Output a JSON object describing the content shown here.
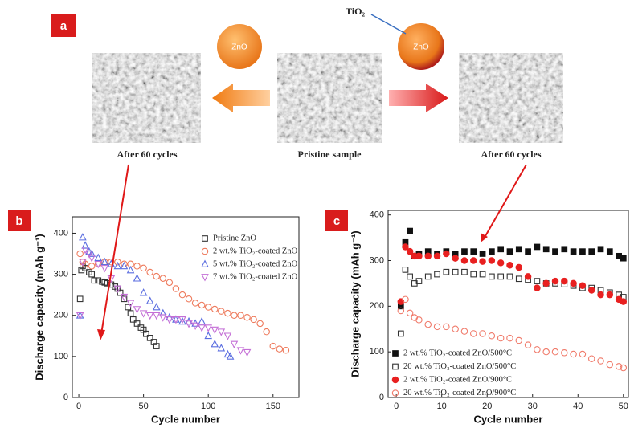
{
  "panel_a": {
    "label": "a",
    "coating_label": "TiO₂",
    "particle_labels": [
      "ZnO",
      "ZnO"
    ],
    "captions": [
      "After 60 cycles",
      "Pristine sample",
      "After 60 cycles"
    ]
  },
  "chart_data": [
    {
      "type": "scatter",
      "label": "b",
      "xlabel": "Cycle number",
      "ylabel": "Discharge capacity (mAh g⁻¹)",
      "xlim": [
        -5,
        170
      ],
      "xticks": [
        0,
        50,
        100,
        150
      ],
      "ylim": [
        0,
        440
      ],
      "yticks": [
        0,
        100,
        200,
        300,
        400
      ],
      "grid": false,
      "series": [
        {
          "name": "Pristine ZnO",
          "color": "#333333",
          "marker": "square",
          "filled": false,
          "x": [
            1,
            2,
            3,
            5,
            8,
            10,
            12,
            15,
            18,
            20,
            22,
            25,
            28,
            30,
            32,
            35,
            38,
            40,
            42,
            45,
            48,
            50,
            52,
            55,
            58,
            60
          ],
          "values": [
            240,
            310,
            320,
            315,
            305,
            300,
            285,
            285,
            282,
            280,
            278,
            275,
            270,
            265,
            255,
            240,
            220,
            205,
            190,
            180,
            170,
            165,
            155,
            145,
            135,
            125
          ]
        },
        {
          "name": "2 wt.% TiO₂-coated ZnO",
          "color": "#ee7a5c",
          "marker": "circle",
          "filled": false,
          "x": [
            1,
            3,
            5,
            10,
            15,
            20,
            25,
            30,
            35,
            40,
            45,
            50,
            55,
            60,
            65,
            70,
            75,
            80,
            85,
            90,
            95,
            100,
            105,
            110,
            115,
            120,
            125,
            130,
            135,
            140,
            145,
            150,
            155,
            160
          ],
          "values": [
            350,
            330,
            325,
            320,
            325,
            330,
            330,
            330,
            325,
            325,
            320,
            315,
            305,
            295,
            290,
            280,
            265,
            250,
            240,
            230,
            225,
            220,
            215,
            210,
            205,
            200,
            200,
            195,
            190,
            180,
            160,
            125,
            118,
            115
          ]
        },
        {
          "name": "5 wt.% TiO₂-coated ZnO",
          "color": "#5b6ee0",
          "marker": "triangle",
          "filled": false,
          "x": [
            1,
            3,
            5,
            8,
            10,
            15,
            20,
            25,
            30,
            35,
            40,
            45,
            50,
            55,
            60,
            65,
            70,
            75,
            80,
            85,
            90,
            95,
            100,
            105,
            110,
            115,
            117
          ],
          "values": [
            200,
            390,
            370,
            355,
            350,
            340,
            330,
            325,
            320,
            320,
            310,
            290,
            255,
            235,
            220,
            205,
            195,
            190,
            185,
            185,
            180,
            185,
            150,
            130,
            120,
            105,
            100
          ]
        },
        {
          "name": "7 wt.% TiO₂-coated ZnO",
          "color": "#c46fd6",
          "marker": "triangle-down",
          "filled": false,
          "x": [
            1,
            3,
            5,
            8,
            10,
            15,
            20,
            25,
            30,
            35,
            40,
            45,
            50,
            55,
            60,
            65,
            70,
            75,
            80,
            85,
            90,
            95,
            100,
            105,
            110,
            115,
            120,
            125,
            130
          ],
          "values": [
            200,
            330,
            360,
            350,
            340,
            325,
            315,
            290,
            265,
            245,
            230,
            215,
            205,
            200,
            200,
            195,
            190,
            190,
            190,
            180,
            175,
            170,
            170,
            165,
            160,
            150,
            130,
            115,
            110
          ]
        }
      ]
    },
    {
      "type": "scatter",
      "label": "c",
      "xlabel": "Cycle number",
      "ylabel": "Discharge capacity (mAh g⁻¹)",
      "xlim": [
        -1.8,
        51.1
      ],
      "xticks": [
        0,
        10,
        20,
        30,
        40,
        50
      ],
      "ylim": [
        0,
        410
      ],
      "yticks": [
        0,
        100,
        200,
        300,
        400
      ],
      "grid": false,
      "x": [
        1,
        2,
        3,
        4,
        5,
        7,
        9,
        11,
        13,
        15,
        17,
        19,
        21,
        23,
        25,
        27,
        29,
        31,
        33,
        35,
        37,
        39,
        41,
        43,
        45,
        47,
        49,
        50
      ],
      "series": [
        {
          "name": "2 wt.% TiO₂-coated ZnO/500°C",
          "color": "#111111",
          "marker": "square",
          "filled": true,
          "values": [
            200,
            340,
            365,
            310,
            315,
            320,
            315,
            320,
            315,
            320,
            320,
            315,
            320,
            325,
            320,
            325,
            320,
            330,
            325,
            320,
            325,
            320,
            320,
            320,
            325,
            320,
            310,
            305
          ]
        },
        {
          "name": "20 wt.% TiO₂-coated ZnO/500°C",
          "color": "#333333",
          "marker": "square",
          "filled": false,
          "values": [
            140,
            280,
            265,
            250,
            255,
            265,
            270,
            275,
            275,
            275,
            270,
            270,
            265,
            265,
            265,
            260,
            258,
            255,
            250,
            250,
            248,
            245,
            240,
            240,
            235,
            230,
            225,
            220
          ]
        },
        {
          "name": "2 wt.% TiO₂-coated ZnO/900°C",
          "color": "#e82020",
          "marker": "circle",
          "filled": true,
          "values": [
            210,
            330,
            320,
            310,
            310,
            310,
            310,
            315,
            305,
            300,
            300,
            298,
            300,
            295,
            290,
            285,
            265,
            240,
            250,
            255,
            255,
            250,
            245,
            235,
            225,
            225,
            215,
            210
          ]
        },
        {
          "name": "20 wt.% TiO₂-coated ZnO/900°C",
          "color": "#f07a6a",
          "marker": "circle",
          "filled": false,
          "values": [
            190,
            215,
            185,
            175,
            170,
            160,
            155,
            155,
            150,
            145,
            140,
            140,
            135,
            130,
            130,
            125,
            115,
            105,
            100,
            100,
            98,
            95,
            95,
            85,
            80,
            72,
            68,
            65
          ]
        }
      ]
    }
  ]
}
